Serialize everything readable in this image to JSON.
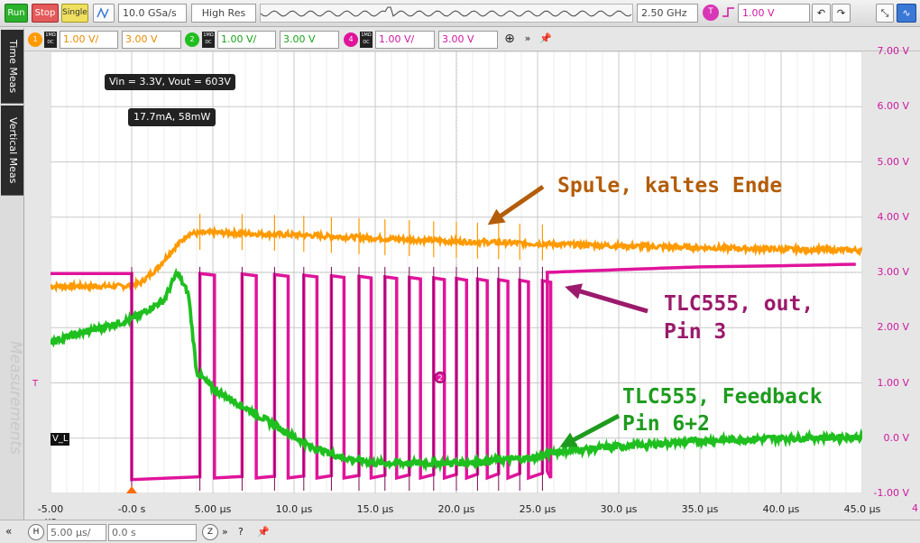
{
  "toolbar": {
    "run_label": "Run",
    "stop_label": "Stop",
    "single_label": "Single",
    "sample_rate": "10.0 GSa/s",
    "acq_mode": "High Res",
    "bandwidth": "2.50 GHz",
    "trigger_source": "T",
    "trigger_level": "1.00 V"
  },
  "channels": [
    {
      "num": "1",
      "color": "#ff9a00",
      "coupling": "1MΩ DC",
      "scale": "1.00 V/",
      "offset": "3.00 V"
    },
    {
      "num": "2",
      "color": "#1fbf1f",
      "coupling": "1MΩ DC",
      "scale": "1.00 V/",
      "offset": "3.00 V"
    },
    {
      "num": "4",
      "color": "#e0149b",
      "coupling": "1MΩ DC",
      "scale": "1.00 V/",
      "offset": "3.00 V"
    }
  ],
  "sidetabs": {
    "time_meas": "Time Meas",
    "vertical_meas": "Vertical Meas",
    "watermark": "Measurements"
  },
  "measurement_boxes": {
    "box1": "Vin = 3.3V, Vout = 603V",
    "box2": "17.7mA, 58mW"
  },
  "annotations": {
    "coil": "Spule, kaltes Ende",
    "out_line1": "TLC555, out,",
    "out_line2": "Pin 3",
    "fb_line1": "TLC555, Feedback",
    "fb_line2": "Pin 6+2"
  },
  "markers": {
    "trigger_marker": "T",
    "level_label": "V_L",
    "channel_badge": "2",
    "corner_label": "4"
  },
  "bottombar": {
    "horizontal_badge": "H",
    "time_scale": "5.00 µs/",
    "time_offset": "0.0 s",
    "zoom_badge": "Z"
  },
  "colors": {
    "orange": "#ff9a00",
    "green": "#1fbf1f",
    "magenta": "#e0149b",
    "annot_orange": "#b35d0a",
    "annot_magenta": "#9b1a6b",
    "annot_green": "#1e9b1e"
  },
  "chart_data": {
    "type": "line",
    "x_tick_labels": [
      "-5.00 µs",
      "-0.0 s",
      "5.00 µs",
      "10.0 µs",
      "15.0 µs",
      "20.0 µs",
      "25.0 µs",
      "30.0 µs",
      "35.0 µs",
      "40.0 µs",
      "45.0 µs"
    ],
    "y_tick_labels": [
      "7.00 V",
      "6.00 V",
      "5.00 V",
      "4.00 V",
      "3.00 V",
      "2.00 V",
      "1.00 V",
      "0.0 V",
      "-1.00 V"
    ],
    "xlim": [
      -5,
      45
    ],
    "ylim": [
      -1,
      7
    ],
    "x_unit": "µs",
    "y_unit": "V",
    "series": [
      {
        "name": "Spule, kaltes Ende",
        "color": "#ff9a00",
        "x": [
          -5,
          -0.5,
          0.5,
          1.5,
          2.5,
          3.5,
          5,
          10,
          15,
          20,
          25,
          30,
          35,
          40,
          45
        ],
        "y": [
          2.75,
          2.75,
          2.8,
          3.05,
          3.4,
          3.7,
          3.72,
          3.68,
          3.62,
          3.56,
          3.52,
          3.48,
          3.45,
          3.42,
          3.4
        ]
      },
      {
        "name": "TLC555, Feedback Pin 6+2",
        "color": "#1fbf1f",
        "x": [
          -5,
          0,
          2,
          2.8,
          3.5,
          4,
          5,
          7,
          9,
          11,
          13,
          15,
          20,
          25,
          26,
          30,
          35,
          40,
          45
        ],
        "y": [
          1.75,
          2.15,
          2.5,
          3.0,
          2.6,
          1.2,
          0.9,
          0.55,
          0.2,
          -0.15,
          -0.35,
          -0.45,
          -0.45,
          -0.35,
          -0.25,
          -0.15,
          -0.05,
          0.0,
          0.02
        ]
      },
      {
        "name": "TLC555, out, Pin 3",
        "color": "#e0149b",
        "x": [
          -5,
          0,
          0.1,
          4,
          25.5,
          25.6,
          30,
          35,
          40,
          45
        ],
        "y": [
          2.98,
          2.98,
          -0.75,
          -0.75,
          -0.7,
          3.0,
          3.05,
          3.1,
          3.12,
          3.15
        ]
      }
    ]
  }
}
